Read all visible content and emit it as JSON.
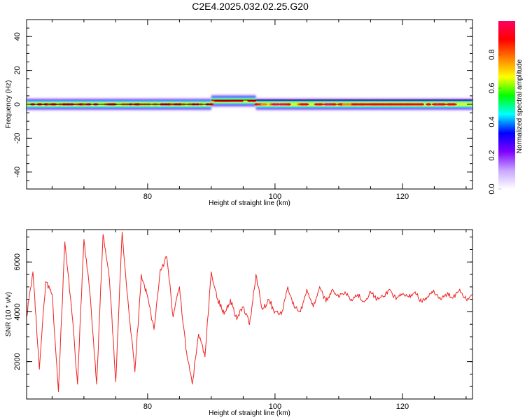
{
  "title": "C2E4.2025.032.02.25.G20",
  "chart_data": [
    {
      "type": "heatmap",
      "xlabel": "Height of straight line (km)",
      "ylabel": "Frequency (Hz)",
      "xlim": [
        61,
        131
      ],
      "ylim": [
        -50,
        50
      ],
      "x_ticks": [
        80,
        100,
        120
      ],
      "x_tick_labels": [
        "80",
        "100",
        "120"
      ],
      "y_ticks": [
        -40,
        -20,
        0,
        20,
        40
      ],
      "y_tick_labels": [
        "-40",
        "-20",
        "0",
        "20",
        "40"
      ],
      "colorbar": {
        "label": "Normalized spectral amplitude",
        "range": [
          0,
          1
        ],
        "ticks": [
          0.0,
          0.2,
          0.4,
          0.6,
          0.8
        ],
        "tick_labels": [
          "0.0",
          "0.2",
          "0.4",
          "0.6",
          "0.8"
        ],
        "colors": [
          "#ffffff",
          "#c7a6ff",
          "#7f00ff",
          "#0000ff",
          "#00ffff",
          "#00ff00",
          "#ffff00",
          "#ff8000",
          "#ff0000",
          "#ff0060"
        ]
      },
      "band": {
        "center_hz": 0,
        "segments": [
          {
            "x": [
              61,
              90
            ],
            "center_hz": 0,
            "halfwidth_hz": 3,
            "level": 0.75
          },
          {
            "x": [
              90,
              97
            ],
            "center_hz": 2,
            "halfwidth_hz": 3,
            "level": 0.85
          },
          {
            "x": [
              97,
              131
            ],
            "center_hz": 0,
            "halfwidth_hz": 3,
            "level": 0.7
          }
        ]
      },
      "grid": false
    },
    {
      "type": "line",
      "xlabel": "Height of straight line (km)",
      "ylabel": "SNR (10 * v/v)",
      "xlim": [
        61,
        131
      ],
      "ylim": [
        500,
        7300
      ],
      "x_ticks": [
        80,
        100,
        120
      ],
      "x_tick_labels": [
        "80",
        "100",
        "120"
      ],
      "y_ticks": [
        2000,
        4000,
        6000
      ],
      "y_tick_labels": [
        "2000",
        "4000",
        "6000"
      ],
      "color": "#ee2222",
      "x": [
        61,
        62,
        63,
        64,
        65,
        66,
        67,
        68,
        69,
        70,
        71,
        72,
        73,
        74,
        75,
        76,
        77,
        78,
        79,
        80,
        81,
        82,
        83,
        84,
        85,
        86,
        87,
        88,
        89,
        90,
        91,
        92,
        93,
        94,
        95,
        96,
        97,
        98,
        99,
        100,
        101,
        102,
        103,
        104,
        105,
        106,
        107,
        108,
        109,
        110,
        111,
        112,
        113,
        114,
        115,
        116,
        117,
        118,
        119,
        120,
        121,
        122,
        123,
        124,
        125,
        126,
        127,
        128,
        129,
        130,
        131
      ],
      "y": [
        3800,
        5600,
        1700,
        5200,
        4700,
        800,
        6800,
        4300,
        1100,
        6900,
        4600,
        1100,
        7100,
        5300,
        1200,
        7200,
        4200,
        1600,
        5500,
        4600,
        3300,
        5700,
        6200,
        3800,
        5000,
        2500,
        1100,
        3100,
        2200,
        5600,
        4500,
        3900,
        4500,
        3700,
        4200,
        3500,
        5500,
        4100,
        4500,
        4000,
        3900,
        5000,
        4200,
        4000,
        4900,
        4200,
        5000,
        4400,
        4900,
        4600,
        4800,
        4500,
        4700,
        4400,
        4800,
        4500,
        4600,
        4900,
        4500,
        4700,
        4600,
        4800,
        4400,
        4600,
        4800,
        4500,
        4700,
        4600,
        4900,
        4500,
        4700
      ]
    }
  ]
}
